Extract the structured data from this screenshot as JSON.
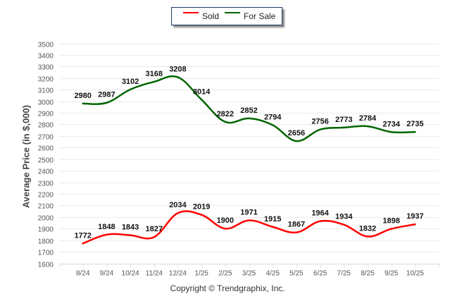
{
  "chart_data": {
    "type": "line",
    "title": "",
    "xlabel": "",
    "ylabel": "Average Price (in $,000)",
    "categories": [
      "8/24",
      "9/24",
      "10/24",
      "11/24",
      "12/24",
      "1/25",
      "2/25",
      "3/25",
      "4/25",
      "5/25",
      "6/25",
      "7/25",
      "8/25",
      "9/25",
      "10/25"
    ],
    "ylim": [
      1600,
      3500
    ],
    "yticks": [
      1600,
      1700,
      1800,
      1900,
      2000,
      2100,
      2200,
      2300,
      2400,
      2500,
      2600,
      2700,
      2800,
      2900,
      3000,
      3100,
      3200,
      3300,
      3400,
      3500
    ],
    "grid": true,
    "legend_position": "top-center",
    "series": [
      {
        "name": "Sold",
        "color": "#ff0000",
        "values": [
          1772,
          1848,
          1843,
          1827,
          2034,
          2019,
          1900,
          1971,
          1915,
          1867,
          1964,
          1934,
          1832,
          1898,
          1937
        ]
      },
      {
        "name": "For Sale",
        "color": "#006400",
        "values": [
          2980,
          2987,
          3102,
          3168,
          3208,
          3014,
          2822,
          2852,
          2794,
          2656,
          2756,
          2773,
          2784,
          2734,
          2735
        ]
      }
    ],
    "smooth": true,
    "data_labels": true
  },
  "legend": {
    "items": [
      {
        "label": "Sold",
        "color": "#ff0000"
      },
      {
        "label": "For Sale",
        "color": "#006400"
      }
    ]
  },
  "footer": {
    "copyright": "Copyright © Trendgraphix, Inc."
  }
}
